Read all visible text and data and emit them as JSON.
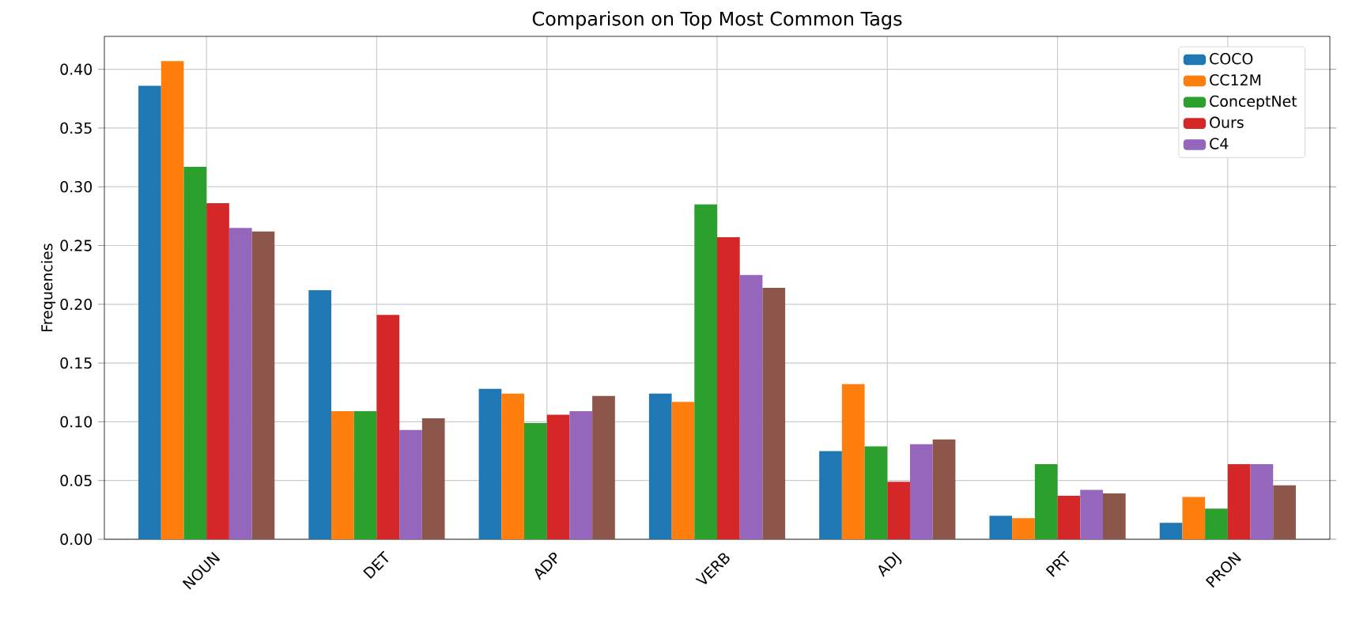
{
  "chart_data": {
    "type": "bar",
    "title": "Comparison on Top Most Common Tags",
    "ylabel": "Frequencies",
    "categories": [
      "NOUN",
      "DET",
      "ADP",
      "VERB",
      "ADJ",
      "PRT",
      "PRON"
    ],
    "series": [
      {
        "name": "COCO",
        "color": "#1f77b4",
        "values": [
          0.386,
          0.212,
          0.128,
          0.124,
          0.075,
          0.02,
          0.014
        ]
      },
      {
        "name": "CC12M",
        "color": "#ff7f0e",
        "values": [
          0.407,
          0.109,
          0.124,
          0.117,
          0.132,
          0.018,
          0.036
        ]
      },
      {
        "name": "ConceptNet",
        "color": "#2ca02c",
        "values": [
          0.317,
          0.109,
          0.099,
          0.285,
          0.079,
          0.064,
          0.026
        ]
      },
      {
        "name": "Ours",
        "color": "#d62728",
        "values": [
          0.286,
          0.191,
          0.106,
          0.257,
          0.049,
          0.037,
          0.064
        ]
      },
      {
        "name": "C4",
        "color": "#9467bd",
        "values": [
          0.265,
          0.093,
          0.109,
          0.225,
          0.081,
          0.042,
          0.064
        ]
      },
      {
        "color": "#8c564b",
        "values": [
          0.262,
          0.103,
          0.122,
          0.214,
          0.085,
          0.039,
          0.046
        ]
      }
    ],
    "ylim": [
      0,
      0.428
    ],
    "yticks": [
      {
        "value": 0,
        "label": "0.00"
      },
      {
        "value": 0.05,
        "label": "0.05"
      },
      {
        "value": 0.1,
        "label": "0.10"
      },
      {
        "value": 0.15,
        "label": "0.15"
      },
      {
        "value": 0.2,
        "label": "0.20"
      },
      {
        "value": 0.25,
        "label": "0.25"
      },
      {
        "value": 0.3,
        "label": "0.30"
      },
      {
        "value": 0.35,
        "label": "0.35"
      },
      {
        "value": 0.4,
        "label": "0.40"
      }
    ],
    "grid": true,
    "legend": "top right"
  }
}
